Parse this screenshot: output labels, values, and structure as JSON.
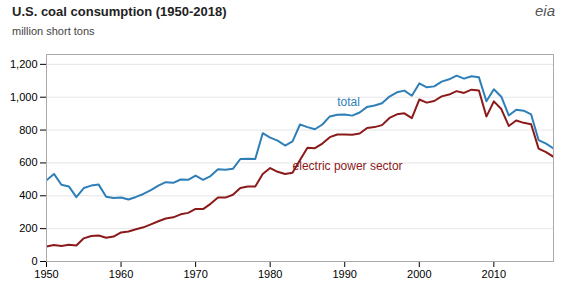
{
  "chart_data": {
    "type": "line",
    "title": "U.S. coal consumption (1950-2018)",
    "ylabel": "million short tons",
    "logo": "eia",
    "x": [
      1950,
      1951,
      1952,
      1953,
      1954,
      1955,
      1956,
      1957,
      1958,
      1959,
      1960,
      1961,
      1962,
      1963,
      1964,
      1965,
      1966,
      1967,
      1968,
      1969,
      1970,
      1971,
      1972,
      1973,
      1974,
      1975,
      1976,
      1977,
      1978,
      1979,
      1980,
      1981,
      1982,
      1983,
      1984,
      1985,
      1986,
      1987,
      1988,
      1989,
      1990,
      1991,
      1992,
      1993,
      1994,
      1995,
      1996,
      1997,
      1998,
      1999,
      2000,
      2001,
      2002,
      2003,
      2004,
      2005,
      2006,
      2007,
      2008,
      2009,
      2010,
      2011,
      2012,
      2013,
      2014,
      2015,
      2016,
      2017,
      2018
    ],
    "series": [
      {
        "name": "total",
        "color": "#2e7fb8",
        "values": [
          494,
          533,
          467,
          457,
          392,
          447,
          462,
          468,
          394,
          387,
          390,
          377,
          393,
          411,
          434,
          462,
          483,
          479,
          499,
          497,
          523,
          497,
          520,
          562,
          558,
          564,
          624,
          625,
          624,
          781,
          754,
          736,
          706,
          731,
          834,
          818,
          805,
          834,
          883,
          893,
          895,
          888,
          907,
          941,
          950,
          963,
          1004,
          1030,
          1040,
          1009,
          1084,
          1060,
          1066,
          1095,
          1109,
          1131,
          1113,
          1128,
          1121,
          975,
          1048,
          1003,
          889,
          924,
          918,
          895,
          739,
          717,
          688
        ]
      },
      {
        "name": "electric power sector",
        "color": "#8b1a1a",
        "values": [
          91,
          101,
          95,
          102,
          97,
          141,
          155,
          158,
          145,
          152,
          177,
          183,
          196,
          208,
          226,
          245,
          262,
          269,
          287,
          296,
          320,
          319,
          351,
          389,
          389,
          406,
          448,
          456,
          457,
          533,
          569,
          546,
          533,
          540,
          618,
          693,
          690,
          718,
          757,
          773,
          773,
          772,
          779,
          813,
          818,
          830,
          874,
          896,
          902,
          873,
          986,
          967,
          977,
          1005,
          1016,
          1037,
          1026,
          1046,
          1041,
          882,
          975,
          928,
          825,
          858,
          844,
          835,
          687,
          666,
          637
        ]
      }
    ],
    "annotations": [
      {
        "text": "total",
        "x": 1989,
        "y": 945
      },
      {
        "text": "electric power sector",
        "x": 1983,
        "y": 560
      }
    ],
    "xlim": [
      1950,
      2018
    ],
    "ylim": [
      0,
      1260
    ],
    "xticks": [
      1950,
      1960,
      1970,
      1980,
      1990,
      2000,
      2010
    ],
    "yticks": [
      0,
      200,
      400,
      600,
      800,
      {
        "value": 1000,
        "label": "1,000"
      },
      {
        "value": 1200,
        "label": "1,200"
      }
    ],
    "grid": true
  }
}
